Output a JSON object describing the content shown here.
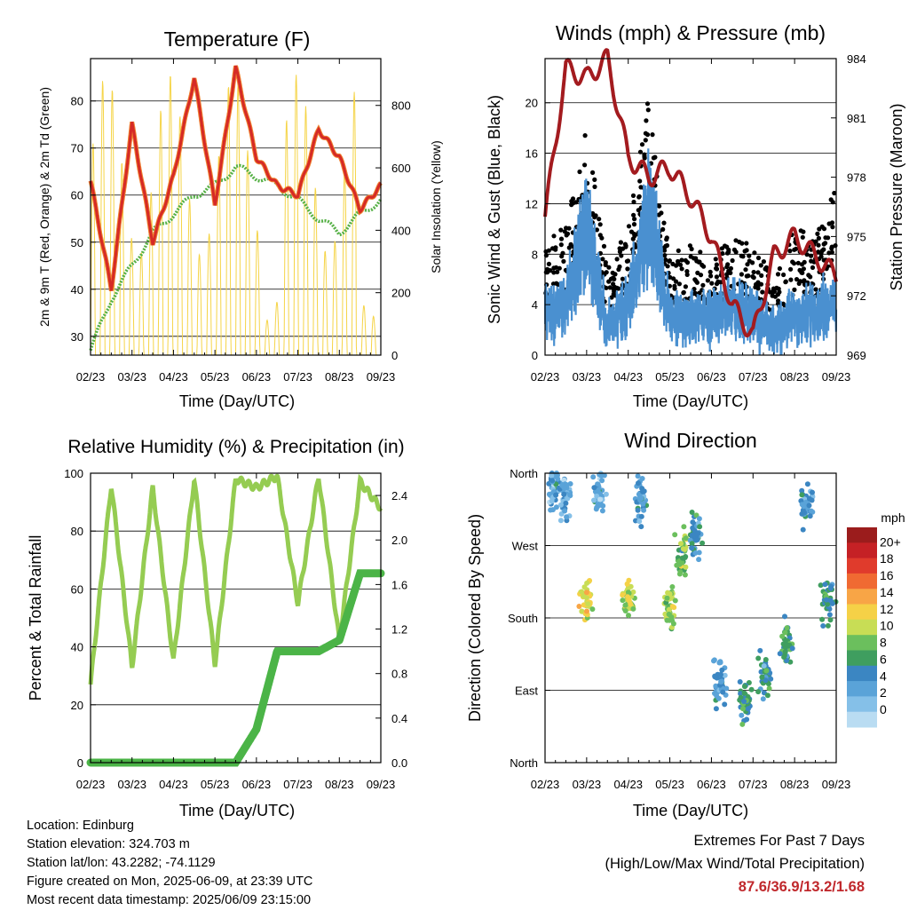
{
  "x_ticks": [
    "02/23",
    "03/23",
    "04/23",
    "05/23",
    "06/23",
    "07/23",
    "08/23",
    "09/23"
  ],
  "xlabel": "Time (Day/UTC)",
  "panels": {
    "temperature": {
      "title": "Temperature (F)",
      "ylabel_left": "2m & 9m T (Red, Orange) & 2m Td (Green)",
      "ylabel_right": "Solar Insolation (Yellow)",
      "yticks_left": [
        "30",
        "40",
        "50",
        "60",
        "70",
        "80"
      ],
      "yticks_right": [
        "0",
        "200",
        "400",
        "600",
        "800"
      ]
    },
    "winds": {
      "title": "Winds (mph) & Pressure (mb)",
      "ylabel_left": "Sonic Wind & Gust (Blue, Black)",
      "ylabel_right": "Station Pressure (Maroon)",
      "yticks_left": [
        "0",
        "4",
        "8",
        "12",
        "16",
        "20"
      ],
      "yticks_right": [
        "969",
        "972",
        "975",
        "978",
        "981",
        "984"
      ]
    },
    "humidity": {
      "title": "Relative Humidity (%) & Precipitation (in)",
      "ylabel_left": "Percent & Total Rainfall",
      "yticks_left": [
        "0",
        "20",
        "40",
        "60",
        "80",
        "100"
      ],
      "yticks_right": [
        "0.0",
        "0.4",
        "0.8",
        "1.2",
        "1.6",
        "2.0",
        "2.4"
      ]
    },
    "direction": {
      "title": "Wind Direction",
      "ylabel_left": "Direction (Colored By Speed)",
      "yticks_left": [
        "North",
        "East",
        "South",
        "West",
        "North"
      ],
      "colorbar_title": "mph",
      "colorbar_labels": [
        "20+",
        "18",
        "16",
        "14",
        "12",
        "10",
        "8",
        "6",
        "4",
        "2",
        "0"
      ],
      "colorbar_colors": [
        "#9b1c1c",
        "#c52125",
        "#e03b2c",
        "#f06a32",
        "#f8a546",
        "#f5d147",
        "#c8dd55",
        "#6bbf5d",
        "#3f9e5f",
        "#3b86c2",
        "#5aa3d8",
        "#85c0e8",
        "#b9dcf2"
      ]
    }
  },
  "info": {
    "location": "Location: Edinburg",
    "elevation": "Station elevation: 324.703 m",
    "latlon": "Station lat/lon: 43.2282; -74.1129",
    "created": "Figure created on Mon, 2025-06-09, at 23:39 UTC",
    "recent": "Most recent data timestamp: 2025/06/09 23:15:00"
  },
  "extremes": {
    "title": "Extremes For Past 7 Days",
    "subtitle": "(High/Low/Max Wind/Total Precipitation)",
    "values": "87.6/36.9/13.2/1.68"
  },
  "chart_data": [
    {
      "type": "line",
      "title": "Temperature (F)",
      "xlabel": "Time (Day/UTC)",
      "ylabel": "2m & 9m T (Red, Orange) & 2m Td (Green)",
      "y2label": "Solar Insolation (Yellow)",
      "x": [
        0,
        0.5,
        1,
        1.5,
        2,
        2.5,
        3,
        3.5,
        4,
        4.5,
        5,
        5.5,
        6,
        6.5,
        7
      ],
      "ylim": [
        26,
        89
      ],
      "y2lim": [
        0,
        950
      ],
      "series": [
        {
          "color": "#d52a26",
          "values": [
            63,
            40,
            75,
            50,
            64,
            85,
            58,
            87,
            68,
            62,
            60,
            74,
            68,
            57,
            62
          ]
        },
        {
          "color": "#55b045",
          "values": [
            27,
            38,
            45,
            52,
            56,
            60,
            62,
            66,
            64,
            62,
            59,
            55,
            52,
            56,
            59
          ]
        },
        {
          "color": "#f5d447",
          "values": [
            0,
            900,
            0,
            880,
            0,
            870,
            0,
            880,
            0,
            540,
            0,
            820,
            0,
            170,
            0
          ]
        }
      ]
    },
    {
      "type": "scatter",
      "title": "Winds (mph) & Pressure (mb)",
      "xlabel": "Time (Day/UTC)",
      "ylabel": "Sonic Wind & Gust (Blue, Black)",
      "y2label": "Station Pressure (Maroon)",
      "x": [
        0,
        0.5,
        1,
        1.5,
        2,
        2.5,
        3,
        3.5,
        4,
        4.5,
        5,
        5.5,
        6,
        6.5,
        7
      ],
      "ylim": [
        0,
        23.5
      ],
      "y2lim": [
        969,
        984
      ],
      "series": [
        {
          "color": "#4a90d0",
          "values": [
            4,
            5,
            11,
            3,
            5,
            12,
            4,
            4,
            4,
            5,
            4,
            3,
            4,
            4,
            5
          ]
        },
        {
          "color": "#000000",
          "values": [
            8,
            9,
            16,
            6,
            9,
            18,
            7,
            8,
            7,
            8,
            8,
            5,
            9,
            8,
            12
          ]
        },
        {
          "color": "#a31b1f",
          "values": [
            976,
            983.5,
            983,
            984,
            979,
            978,
            978.5,
            977,
            975,
            971.5,
            970,
            974,
            975,
            974,
            973
          ]
        }
      ]
    },
    {
      "type": "line",
      "title": "Relative Humidity (%) & Precipitation (in)",
      "xlabel": "Time (Day/UTC)",
      "ylabel": "Percent & Total Rainfall",
      "x": [
        0,
        0.5,
        1,
        1.5,
        2,
        2.5,
        3,
        3.5,
        4,
        4.5,
        5,
        5.5,
        6,
        6.5,
        7
      ],
      "ylim": [
        0,
        100
      ],
      "y2lim": [
        0,
        2.6
      ],
      "series": [
        {
          "color": "#95cc52",
          "values": [
            27,
            96,
            33,
            95,
            35,
            98,
            34,
            98,
            95,
            99,
            55,
            99,
            42,
            97,
            88
          ]
        },
        {
          "color": "#4bb447",
          "values": [
            0,
            0,
            0,
            0,
            0,
            0,
            0,
            0,
            0.3,
            1.0,
            1.0,
            1.0,
            1.1,
            1.7,
            1.7
          ]
        }
      ]
    },
    {
      "type": "scatter",
      "title": "Wind Direction",
      "xlabel": "Time (Day/UTC)",
      "ylabel": "Direction (Colored By Speed)",
      "categories_y": [
        "North",
        "East",
        "South",
        "West",
        "North"
      ],
      "colorbar": {
        "label": "mph",
        "range": [
          0,
          20
        ]
      },
      "x": [
        0.2,
        0.5,
        1.0,
        1.3,
        2.0,
        2.3,
        3.0,
        3.3,
        3.6,
        4.2,
        4.8,
        5.3,
        5.8,
        6.3,
        6.8
      ],
      "series": [
        {
          "name": "direction",
          "values": [
            340,
            330,
            200,
            335,
            200,
            330,
            195,
            260,
            280,
            100,
            80,
            110,
            150,
            320,
            200
          ]
        },
        {
          "name": "speed",
          "values": [
            4,
            3,
            11,
            3,
            10,
            4,
            9,
            8,
            5,
            4,
            6,
            5,
            7,
            4,
            6
          ]
        }
      ]
    }
  ]
}
